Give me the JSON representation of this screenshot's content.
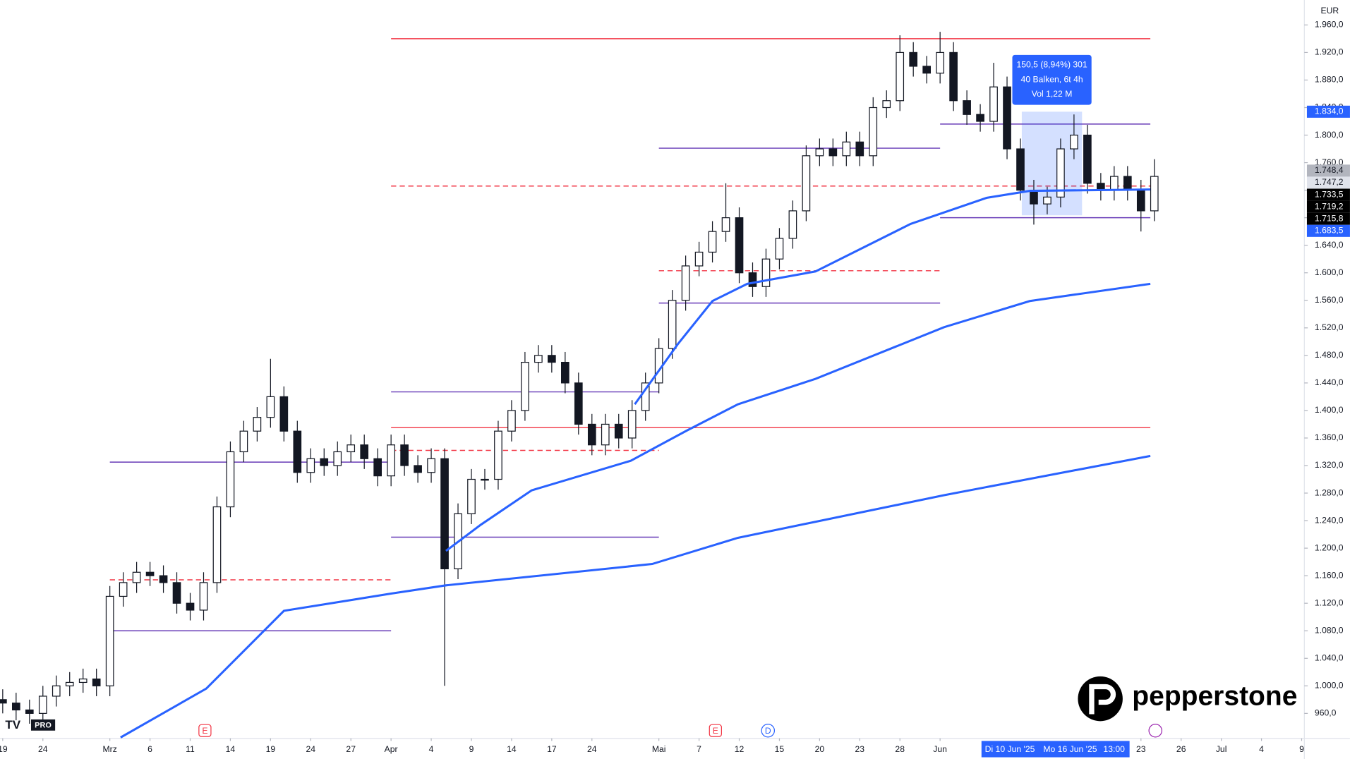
{
  "chart_data": {
    "type": "candlestick",
    "currency": "EUR",
    "xlim": [
      -0.2,
      97.2
    ],
    "xticks": [
      {
        "value": 0,
        "label": "19"
      },
      {
        "value": 3,
        "label": "24"
      },
      {
        "value": 8,
        "label": "Mrz"
      },
      {
        "value": 11,
        "label": "6"
      },
      {
        "value": 14,
        "label": "11"
      },
      {
        "value": 17,
        "label": "14"
      },
      {
        "value": 20,
        "label": "19"
      },
      {
        "value": 23,
        "label": "24"
      },
      {
        "value": 26,
        "label": "27"
      },
      {
        "value": 29,
        "label": "Apr"
      },
      {
        "value": 32,
        "label": "4"
      },
      {
        "value": 35,
        "label": "9"
      },
      {
        "value": 38,
        "label": "14"
      },
      {
        "value": 41,
        "label": "17"
      },
      {
        "value": 44,
        "label": "24"
      },
      {
        "value": 49,
        "label": "Mai"
      },
      {
        "value": 52,
        "label": "7"
      },
      {
        "value": 55,
        "label": "12"
      },
      {
        "value": 58,
        "label": "15"
      },
      {
        "value": 61,
        "label": "20"
      },
      {
        "value": 64,
        "label": "23"
      },
      {
        "value": 67,
        "label": "28"
      },
      {
        "value": 70,
        "label": "Jun"
      },
      {
        "value": 85,
        "label": "23"
      },
      {
        "value": 88,
        "label": "26"
      },
      {
        "value": 91,
        "label": "Jul"
      },
      {
        "value": 94,
        "label": "4"
      },
      {
        "value": 97,
        "label": "9"
      }
    ],
    "ylim": [
      923.75,
      1996.25
    ],
    "yticks": [
      {
        "value": 960,
        "label": "960,0"
      },
      {
        "value": 1000,
        "label": "1.000,0"
      },
      {
        "value": 1040,
        "label": "1.040,0"
      },
      {
        "value": 1080,
        "label": "1.080,0"
      },
      {
        "value": 1120,
        "label": "1.120,0"
      },
      {
        "value": 1160,
        "label": "1.160,0"
      },
      {
        "value": 1200,
        "label": "1.200,0"
      },
      {
        "value": 1240,
        "label": "1.240,0"
      },
      {
        "value": 1280,
        "label": "1.280,0"
      },
      {
        "value": 1320,
        "label": "1.320,0"
      },
      {
        "value": 1360,
        "label": "1.360,0"
      },
      {
        "value": 1400,
        "label": "1.400,0"
      },
      {
        "value": 1440,
        "label": "1.440,0"
      },
      {
        "value": 1480,
        "label": "1.480,0"
      },
      {
        "value": 1520,
        "label": "1.520,0"
      },
      {
        "value": 1560,
        "label": "1.560,0"
      },
      {
        "value": 1600,
        "label": "1.600,0"
      },
      {
        "value": 1640,
        "label": "1.640,0"
      },
      {
        "value": 1680,
        "label": "1.680,0"
      },
      {
        "value": 1720,
        "label": "1.720,0"
      },
      {
        "value": 1760,
        "label": "1.760,0"
      },
      {
        "value": 1800,
        "label": "1.800,0"
      },
      {
        "value": 1840,
        "label": "1.840,0"
      },
      {
        "value": 1880,
        "label": "1.880,0"
      },
      {
        "value": 1920,
        "label": "1.920,0"
      },
      {
        "value": 1960,
        "label": "1.960,0"
      }
    ],
    "x": [
      0,
      1,
      2,
      3,
      4,
      5,
      6,
      7,
      8,
      9,
      10,
      11,
      12,
      13,
      14,
      15,
      16,
      17,
      18,
      19,
      20,
      21,
      22,
      23,
      24,
      25,
      26,
      27,
      28,
      29,
      30,
      31,
      32,
      33,
      34,
      35,
      36,
      37,
      38,
      39,
      40,
      41,
      42,
      43,
      44,
      45,
      46,
      47,
      48,
      49,
      50,
      51,
      52,
      53,
      54,
      55,
      56,
      57,
      58,
      59,
      60,
      61,
      62,
      63,
      64,
      65,
      66,
      67,
      68,
      69,
      70,
      71,
      72,
      73,
      74,
      75,
      76,
      77,
      78,
      79,
      80,
      81,
      82,
      83,
      84,
      85,
      86
    ],
    "open": [
      980,
      975,
      965,
      960,
      985,
      1000,
      1005,
      1010,
      1000,
      1130,
      1150,
      1165,
      1160,
      1150,
      1120,
      1110,
      1150,
      1260,
      1340,
      1370,
      1390,
      1420,
      1370,
      1310,
      1330,
      1320,
      1340,
      1350,
      1330,
      1305,
      1350,
      1320,
      1310,
      1330,
      1170,
      1250,
      1300,
      1300,
      1370,
      1400,
      1470,
      1480,
      1470,
      1440,
      1380,
      1350,
      1380,
      1360,
      1400,
      1440,
      1490,
      1560,
      1610,
      1630,
      1660,
      1680,
      1600,
      1580,
      1620,
      1650,
      1690,
      1770,
      1780,
      1770,
      1790,
      1770,
      1840,
      1850,
      1920,
      1900,
      1890,
      1920,
      1850,
      1830,
      1820,
      1870,
      1780,
      1720,
      1700,
      1710,
      1780,
      1800,
      1730,
      1720,
      1740,
      1720,
      1690
    ],
    "high": [
      995,
      990,
      980,
      1000,
      1015,
      1020,
      1025,
      1025,
      1145,
      1165,
      1180,
      1180,
      1175,
      1165,
      1135,
      1165,
      1275,
      1355,
      1385,
      1405,
      1475,
      1435,
      1385,
      1345,
      1345,
      1355,
      1365,
      1365,
      1345,
      1365,
      1365,
      1335,
      1345,
      1345,
      1265,
      1315,
      1315,
      1385,
      1415,
      1485,
      1495,
      1495,
      1485,
      1455,
      1395,
      1395,
      1395,
      1415,
      1455,
      1505,
      1575,
      1625,
      1645,
      1675,
      1730,
      1695,
      1615,
      1635,
      1665,
      1705,
      1785,
      1795,
      1795,
      1805,
      1805,
      1855,
      1865,
      1945,
      1935,
      1915,
      1950,
      1935,
      1865,
      1845,
      1905,
      1885,
      1795,
      1735,
      1725,
      1795,
      1830,
      1815,
      1745,
      1755,
      1755,
      1735,
      1765
    ],
    "low": [
      960,
      950,
      945,
      945,
      970,
      985,
      990,
      985,
      985,
      1115,
      1135,
      1145,
      1135,
      1105,
      1095,
      1095,
      1135,
      1245,
      1325,
      1355,
      1375,
      1355,
      1295,
      1295,
      1305,
      1305,
      1325,
      1315,
      1290,
      1290,
      1305,
      1295,
      1295,
      1000,
      1155,
      1235,
      1285,
      1285,
      1355,
      1385,
      1455,
      1455,
      1425,
      1365,
      1335,
      1335,
      1345,
      1345,
      1385,
      1425,
      1475,
      1545,
      1595,
      1615,
      1645,
      1585,
      1565,
      1565,
      1605,
      1635,
      1675,
      1755,
      1755,
      1755,
      1755,
      1755,
      1825,
      1835,
      1885,
      1875,
      1875,
      1835,
      1815,
      1805,
      1805,
      1765,
      1705,
      1670,
      1685,
      1695,
      1765,
      1715,
      1705,
      1705,
      1705,
      1660,
      1675
    ],
    "close": [
      975,
      965,
      960,
      985,
      1000,
      1005,
      1010,
      1000,
      1130,
      1150,
      1165,
      1160,
      1150,
      1120,
      1110,
      1150,
      1260,
      1340,
      1370,
      1390,
      1420,
      1370,
      1310,
      1330,
      1320,
      1340,
      1350,
      1330,
      1305,
      1350,
      1320,
      1310,
      1330,
      1170,
      1250,
      1300,
      1300,
      1370,
      1400,
      1470,
      1480,
      1470,
      1440,
      1380,
      1350,
      1380,
      1360,
      1400,
      1440,
      1490,
      1560,
      1610,
      1630,
      1660,
      1680,
      1600,
      1580,
      1620,
      1650,
      1690,
      1770,
      1780,
      1770,
      1790,
      1770,
      1840,
      1850,
      1920,
      1900,
      1890,
      1920,
      1850,
      1830,
      1820,
      1870,
      1780,
      1720,
      1700,
      1710,
      1780,
      1800,
      1730,
      1720,
      1740,
      1720,
      1690,
      1740
    ],
    "up_color": "#ffffff",
    "down_color": "#131722",
    "lines": [
      {
        "color": "#2962ff",
        "x": [
          8.8,
          15.2,
          21.0,
          29.0,
          33.1,
          48.5,
          54.9,
          70.3,
          85.7
        ],
        "values": [
          925,
          996,
          1109,
          1134,
          1146,
          1177,
          1215,
          1277,
          1334
        ]
      },
      {
        "color": "#2962ff",
        "x": [
          33.1,
          35.7,
          39.5,
          46.9,
          51.1,
          54.9,
          60.7,
          70.3,
          76.7,
          85.7
        ],
        "values": [
          1196,
          1234,
          1284,
          1327,
          1371,
          1409,
          1446,
          1521,
          1559,
          1584
        ]
      },
      {
        "color": "#2962ff",
        "x": [
          47.2,
          50.4,
          53.0,
          55.6,
          60.7,
          67.8,
          73.5,
          76.7,
          85.7
        ],
        "values": [
          1409,
          1496,
          1559,
          1584,
          1602,
          1671,
          1709,
          1719,
          1721
        ]
      }
    ],
    "levels": [
      {
        "value": 1940,
        "x0": 29.0,
        "x1": 85.7,
        "color": "#f23645",
        "dashed": false
      },
      {
        "value": 1375,
        "x0": 29.0,
        "x1": 85.7,
        "color": "#f23645",
        "dashed": false
      },
      {
        "value": 1726,
        "x0": 29.0,
        "x1": 85.7,
        "color": "#f23645",
        "dashed": true
      },
      {
        "value": 1603,
        "x0": 49.0,
        "x1": 70.0,
        "color": "#f23645",
        "dashed": true
      },
      {
        "value": 1781,
        "x0": 49.0,
        "x1": 70.0,
        "color": "#673ab7",
        "dashed": false
      },
      {
        "value": 1556,
        "x0": 49.0,
        "x1": 70.0,
        "color": "#673ab7",
        "dashed": false
      },
      {
        "value": 1816,
        "x0": 70.0,
        "x1": 85.7,
        "color": "#673ab7",
        "dashed": false
      },
      {
        "value": 1680,
        "x0": 70.0,
        "x1": 85.7,
        "color": "#673ab7",
        "dashed": false
      },
      {
        "value": 1427,
        "x0": 29.0,
        "x1": 49.0,
        "color": "#673ab7",
        "dashed": false
      },
      {
        "value": 1216,
        "x0": 29.0,
        "x1": 49.0,
        "color": "#673ab7",
        "dashed": false
      },
      {
        "value": 1342,
        "x0": 29.0,
        "x1": 49.0,
        "color": "#f23645",
        "dashed": true
      },
      {
        "value": 1325,
        "x0": 8.0,
        "x1": 29.0,
        "color": "#673ab7",
        "dashed": false
      },
      {
        "value": 1080,
        "x0": 8.0,
        "x1": 29.0,
        "color": "#673ab7",
        "dashed": false
      },
      {
        "value": 1154,
        "x0": 8.0,
        "x1": 29.0,
        "color": "#f23645",
        "dashed": true
      }
    ],
    "price_labels": [
      {
        "value": 1834.0,
        "label": "1.834,0",
        "bg": "#2962ff",
        "fg": "#ffffff"
      },
      {
        "value": 1748.4,
        "label": "1.748,4",
        "bg": "#b2b5be",
        "fg": "#131722"
      },
      {
        "value": 1747.2,
        "label": "1.747,2",
        "bg": "#e0e3eb",
        "fg": "#131722"
      },
      {
        "value": 1733.5,
        "label": "1.733,5",
        "bg": "#000000",
        "fg": "#ffffff"
      },
      {
        "value": 1719.2,
        "label": "1.719,2",
        "bg": "#000000",
        "fg": "#ffffff"
      },
      {
        "value": 1715.8,
        "label": "1.715,8",
        "bg": "#000000",
        "fg": "#ffffff"
      },
      {
        "value": 1683.5,
        "label": "1.683,5",
        "bg": "#2962ff",
        "fg": "#ffffff"
      }
    ],
    "measure": {
      "x0": 76.1,
      "x1": 80.6,
      "high": 1834.0,
      "low": 1683.5,
      "lines": [
        "150,5 (8,94%) 301",
        "40 Balken, 6t 4h",
        "Vol 1,22 M"
      ]
    },
    "crosshair_labels": [
      "Di 10 Jun '25",
      "Mo 16 Jun '25",
      "13:00"
    ],
    "events": [
      "E",
      "E",
      "D"
    ]
  },
  "branding": {
    "broker": "pepperstone",
    "platform": "PRO"
  }
}
